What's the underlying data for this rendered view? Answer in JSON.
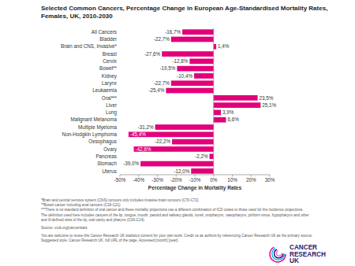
{
  "chart_data": {
    "type": "bar",
    "orientation": "horizontal",
    "title": "Selected Common Cancers, Percentage Change in European Age-Standardised Mortality Rates, Females, UK, 2010-2030",
    "x_label": "Percentage Change in Mortality Rates",
    "categories": [
      "All Cancers",
      "Bladder",
      "Brain and CNS, Invasive*",
      "Breast",
      "Cervix",
      "Bowel**",
      "Kidney",
      "Larynx",
      "Leukaemia",
      "Oral***",
      "Liver",
      "Lung",
      "Malignant Melanoma",
      "Multiple Myeloma",
      "Non-Hodgkin Lymphoma",
      "Oesophagus",
      "Ovary",
      "Pancreas",
      "Stomach",
      "Uterus"
    ],
    "values": [
      -16.7,
      -22.7,
      1.4,
      -27.6,
      -12.8,
      -19.5,
      -10.4,
      -22.7,
      -25.4,
      23.5,
      25.1,
      3.9,
      6.6,
      -31.2,
      -45.4,
      -22.2,
      -42.6,
      -2.2,
      -39.0,
      -12.0
    ],
    "value_labels": [
      "-16,7%",
      "-22,7%",
      "1,4%",
      "-27,6%",
      "-12,8%",
      "-19,5%",
      "-10,4%",
      "-22,7%",
      "-25,4%",
      "23,5%",
      "25,1%",
      "3,9%",
      "6,6%",
      "-31,2%",
      "-45,4%",
      "-22,2%",
      "-42,6%",
      "-2,2%",
      "-39,0%",
      "-12,0%"
    ],
    "color": "#e2007a",
    "xlim": [
      -50,
      30
    ],
    "xticks": [
      {
        "value": -50,
        "label": "-50%"
      },
      {
        "value": -40,
        "label": "-40%"
      },
      {
        "value": -30,
        "label": "-30%"
      },
      {
        "value": -20,
        "label": "-20%"
      },
      {
        "value": -10,
        "label": "-10%"
      },
      {
        "value": 0,
        "label": "0%"
      },
      {
        "value": 10,
        "label": "10%"
      },
      {
        "value": 20,
        "label": "20%"
      },
      {
        "value": 30,
        "label": "30%"
      }
    ],
    "grid": false,
    "data_labels": true
  },
  "footer": {
    "notes": [
      "*Brain and central nervous system (CNS) tumours only includes invasive brain tumours (C70-C72)",
      "**Bowel cancer including anal cancers (C18-C21)",
      "***There is no standard definition of oral cancer and these mortality projections use a different combination of ICD codes to those used for the incidence projections.",
      "The definition used here includes cancers of the lip, tongue, mouth, parotid and salivary glands, tonsil, oropharynx, nasopharynx, piriform sinus, hypopharynx and other",
      "and ill-defined sites of the lip, oral cavity and pharynx (C00-C14)."
    ],
    "source": "Source: cruk.org/cancerstats",
    "credit": [
      "You are welcome to reuse this Cancer Research UK statistics content for your own work. Credit us as authors by referencing Cancer Research UK as the primary source.",
      "Suggested style: Cancer Research UK, full URL of the page, Accessed [month] [year]."
    ],
    "logo": [
      "CANCER",
      "RESEARCH",
      "UK"
    ]
  }
}
